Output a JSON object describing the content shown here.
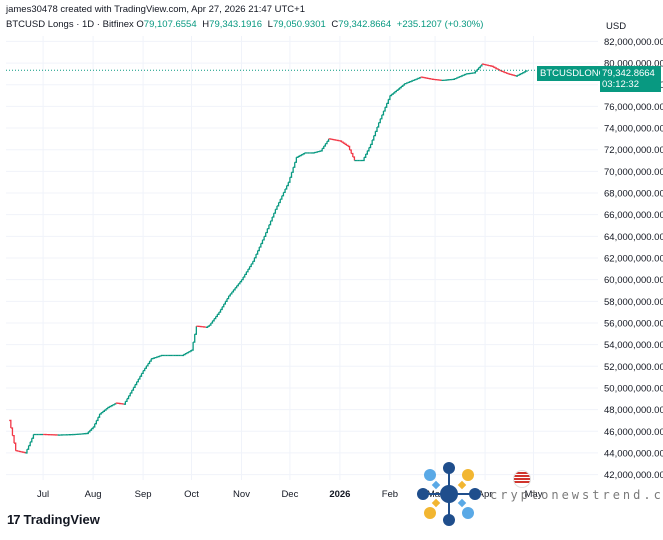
{
  "header": {
    "created": "james30478 created with TradingView.com, Apr 27, 2026 21:47 UTC+1",
    "symbol": "BTCUSD Longs · 1D · Bitfinex",
    "ohlc": [
      {
        "label": "O",
        "value": "79,107.6554"
      },
      {
        "label": "H",
        "value": "79,343.1916"
      },
      {
        "label": "L",
        "value": "79,050.9301"
      },
      {
        "label": "C",
        "value": "79,342.8664"
      }
    ],
    "change": "+235.1207 (+0.30%)",
    "currency": "USD"
  },
  "price_label": {
    "name": "BTCUSDLONGS",
    "value": "79,342.8664",
    "countdown": "03:12:32"
  },
  "brand": {
    "name": "TradingView",
    "mark": "17"
  },
  "watermark": {
    "text": "cryptonewstrend.com"
  },
  "colors": {
    "up": "#089981",
    "down": "#f23645",
    "tag": "#089981",
    "grid": "#f0f3fa",
    "dotted": "#089981"
  },
  "chart_data": {
    "type": "line",
    "x_ticks": [
      "Jul",
      "Aug",
      "Sep",
      "Oct",
      "Nov",
      "Dec",
      "2026",
      "Feb",
      "Mar",
      "Apr",
      "May"
    ],
    "y_ticks": [
      "42,000,000.0000",
      "44,000,000.0000",
      "46,000,000.0000",
      "48,000,000.0000",
      "50,000,000.0000",
      "52,000,000.0000",
      "54,000,000.0000",
      "56,000,000.0000",
      "58,000,000.0000",
      "60,000,000.0000",
      "62,000,000.0000",
      "64,000,000.0000",
      "66,000,000.0000",
      "68,000,000.0000",
      "70,000,000.0000",
      "72,000,000.0000",
      "74,000,000.0000",
      "76,000,000.0000",
      "78,000,000.0000",
      "80,000,000.0000",
      "82,000,000.0000"
    ],
    "y_range": [
      41500000,
      82500000
    ],
    "grid": true,
    "x": [
      "2025-06-10",
      "2025-06-14",
      "2025-06-20",
      "2025-06-25",
      "2025-07-01",
      "2025-07-10",
      "2025-07-20",
      "2025-07-28",
      "2025-08-01",
      "2025-08-05",
      "2025-08-10",
      "2025-08-15",
      "2025-08-20",
      "2025-08-25",
      "2025-09-01",
      "2025-09-06",
      "2025-09-12",
      "2025-09-18",
      "2025-09-25",
      "2025-10-01",
      "2025-10-04",
      "2025-10-10",
      "2025-10-12",
      "2025-10-18",
      "2025-10-24",
      "2025-11-01",
      "2025-11-08",
      "2025-11-15",
      "2025-11-22",
      "2025-11-30",
      "2025-12-05",
      "2025-12-10",
      "2025-12-15",
      "2025-12-20",
      "2025-12-25",
      "2026-01-01",
      "2026-01-06",
      "2026-01-10",
      "2026-01-15",
      "2026-01-20",
      "2026-01-25",
      "2026-02-01",
      "2026-02-06",
      "2026-02-10",
      "2026-02-15",
      "2026-02-20",
      "2026-02-27",
      "2026-03-05",
      "2026-03-12",
      "2026-03-20",
      "2026-03-25",
      "2026-03-30",
      "2026-04-05",
      "2026-04-10",
      "2026-04-15",
      "2026-04-20",
      "2026-04-24",
      "2026-04-27"
    ],
    "values": [
      47000000,
      44200000,
      44000000,
      45700000,
      45700000,
      45650000,
      45700000,
      45800000,
      46400000,
      47600000,
      48200000,
      48600000,
      48500000,
      49800000,
      51600000,
      52700000,
      53000000,
      53000000,
      53000000,
      53500000,
      55700000,
      55600000,
      55800000,
      57000000,
      58500000,
      60000000,
      61700000,
      64000000,
      66500000,
      69000000,
      71300000,
      71700000,
      71700000,
      71900000,
      73000000,
      72800000,
      72300000,
      71000000,
      71000000,
      72500000,
      74500000,
      77000000,
      77600000,
      78100000,
      78400000,
      78700000,
      78500000,
      78400000,
      78500000,
      79000000,
      79100000,
      79900000,
      79700000,
      79300000,
      79000000,
      78800000,
      79100000,
      79342866
    ]
  }
}
